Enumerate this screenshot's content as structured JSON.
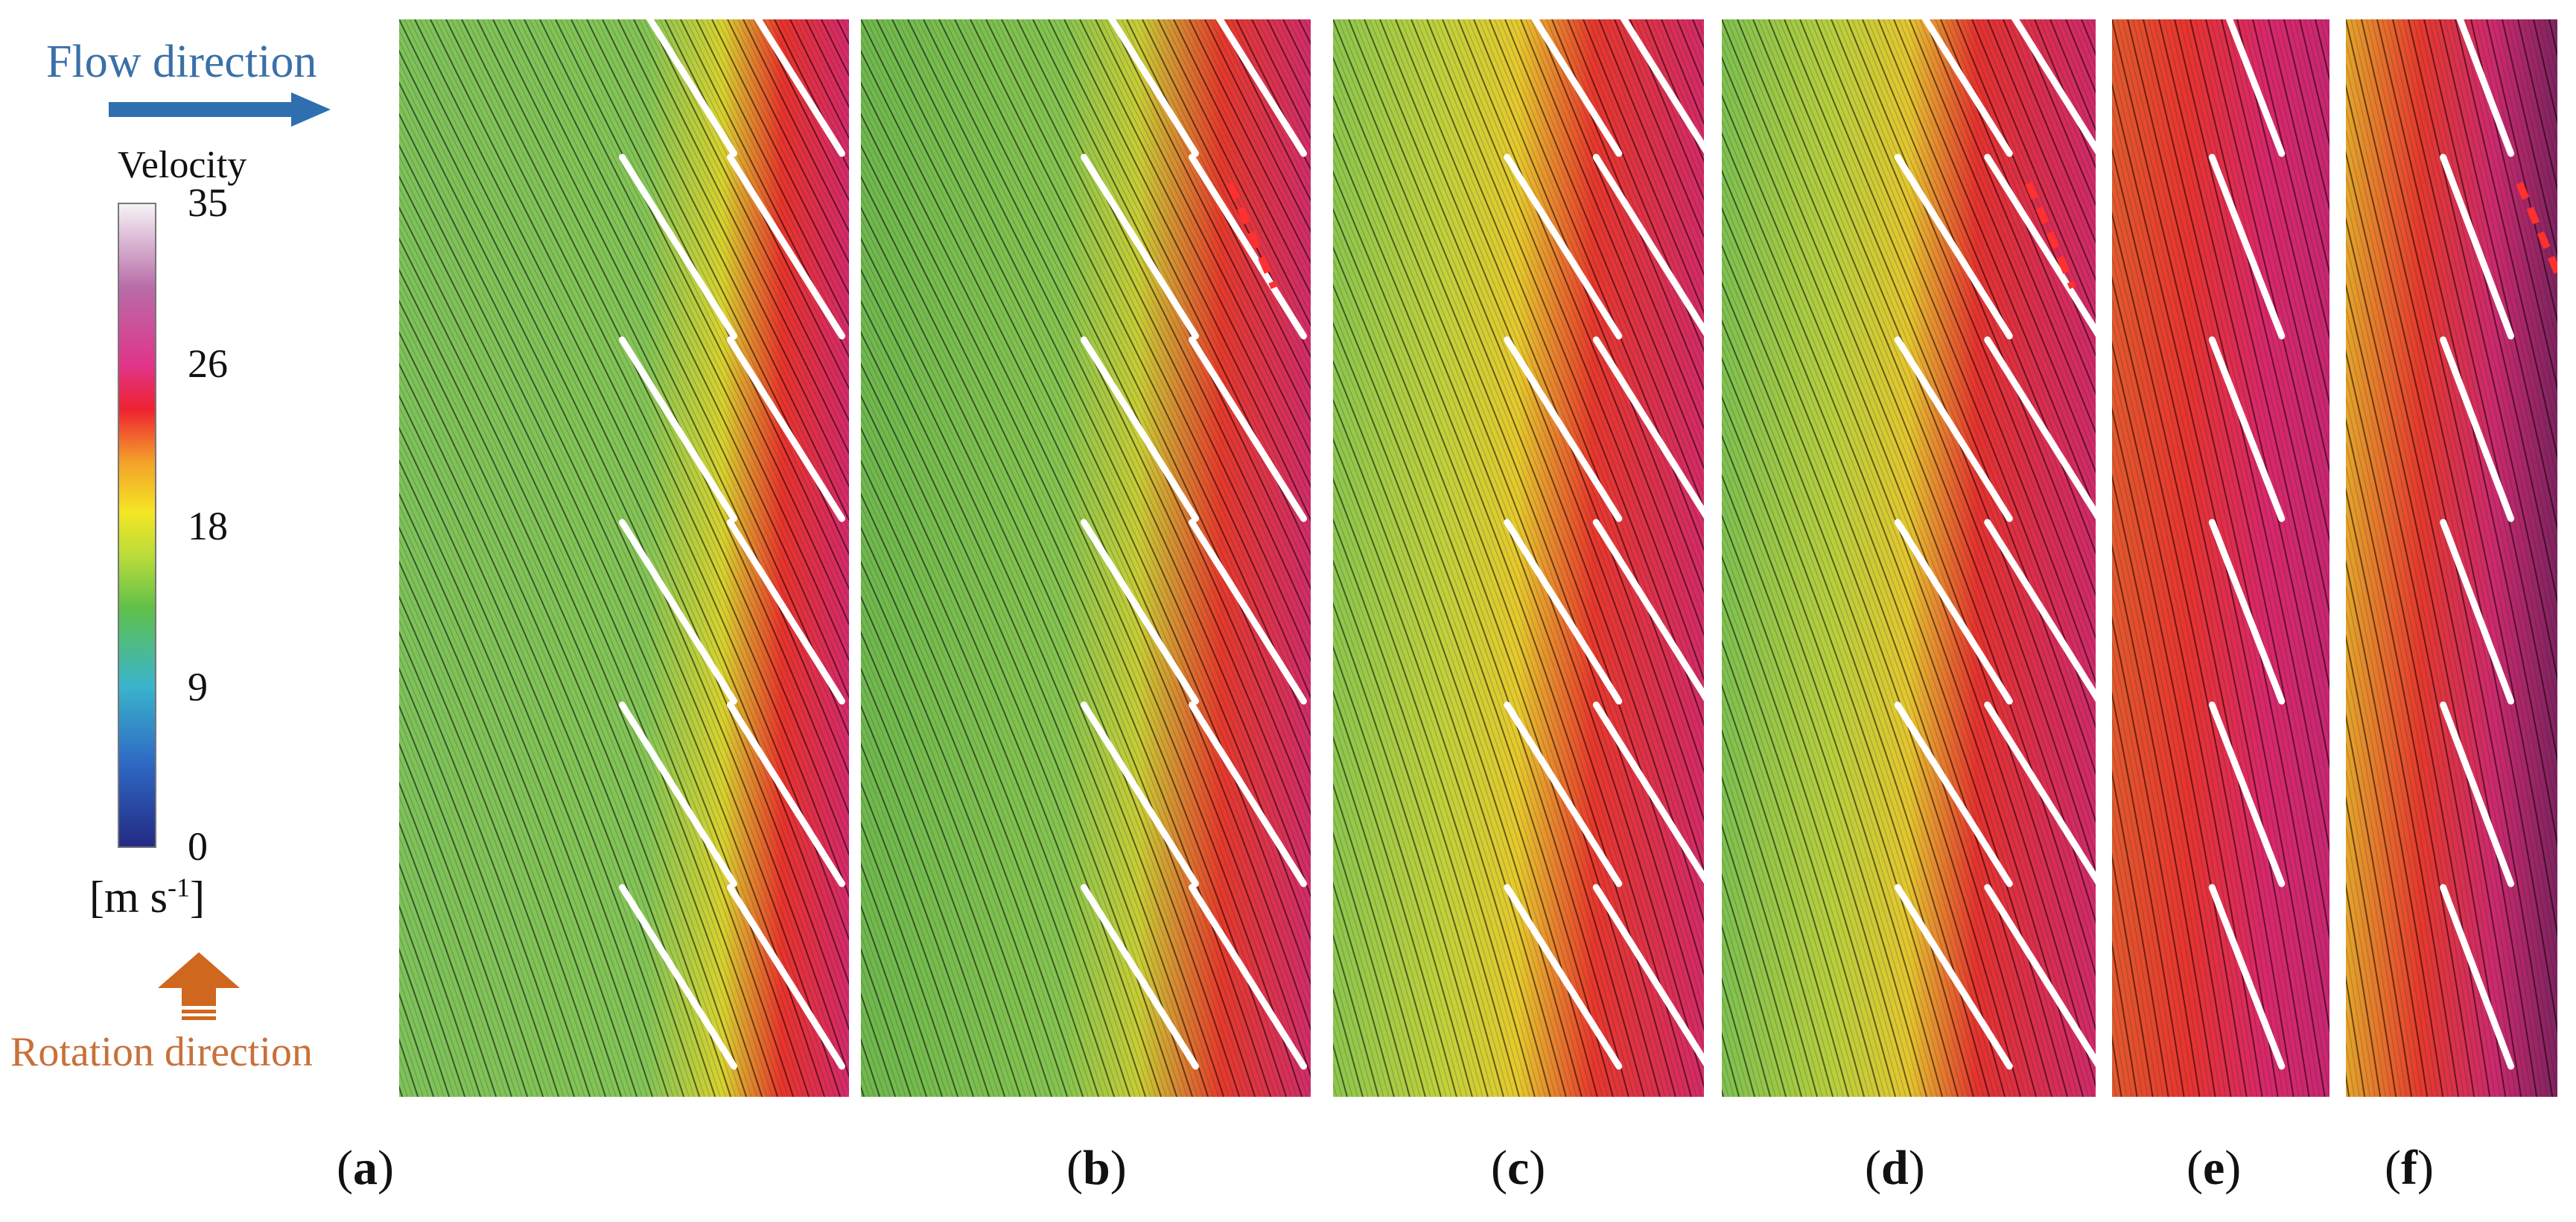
{
  "legend": {
    "flow_label": "Flow direction",
    "title": "Velocity",
    "ticks": [
      "35",
      "26",
      "18",
      "9",
      "0"
    ],
    "unit_main": "[m s",
    "unit_sup": "-1",
    "unit_close": "]",
    "rotation_label": "Rotation direction",
    "colors": {
      "flow": "#3a70a8",
      "rotation": "#c9703a"
    }
  },
  "panels": [
    {
      "label": "a",
      "paren_open": "(",
      "paren_close": ")"
    },
    {
      "label": "b",
      "paren_open": "(",
      "paren_close": ")"
    },
    {
      "label": "c",
      "paren_open": "(",
      "paren_close": ")"
    },
    {
      "label": "d",
      "paren_open": "(",
      "paren_close": ")"
    },
    {
      "label": "e",
      "paren_open": "(",
      "paren_close": ")"
    },
    {
      "label": "f",
      "paren_open": "(",
      "paren_close": ")"
    }
  ]
}
